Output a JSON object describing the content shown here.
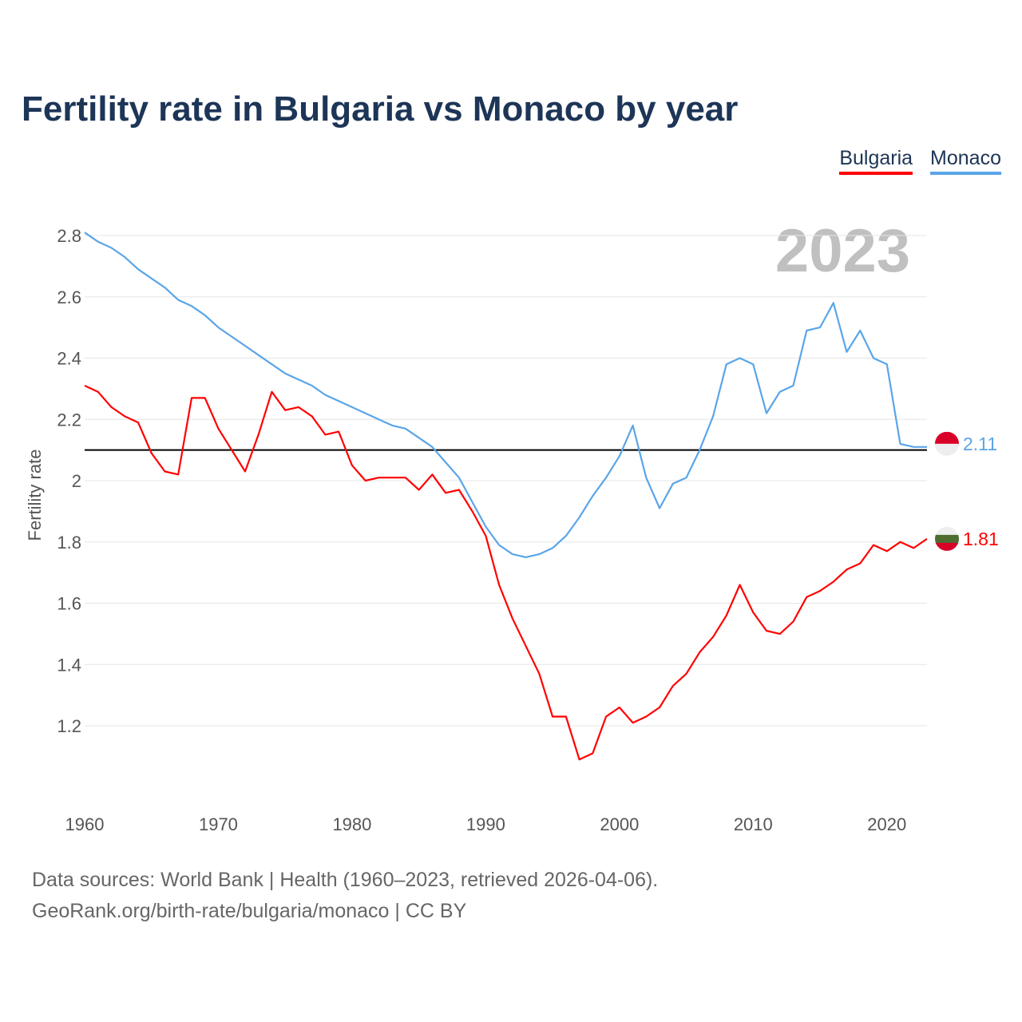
{
  "title": "Fertility rate in Bulgaria vs Monaco by year",
  "legend": [
    {
      "label": "Bulgaria",
      "color": "#ff0000"
    },
    {
      "label": "Monaco",
      "color": "#5aa5e8"
    }
  ],
  "footer": {
    "line1": "Data sources: World Bank | Health (1960–2023, retrieved 2026-04-06).",
    "line2": "GeoRank.org/birth-rate/bulgaria/monaco | CC BY"
  },
  "chart_data": {
    "type": "line",
    "title": "Fertility rate in Bulgaria vs Monaco by year",
    "ylabel": "Fertility rate",
    "xlabel": "",
    "year_label": "2023",
    "xlim": [
      1960,
      2023
    ],
    "ylim": [
      1.0,
      2.8
    ],
    "yticks": [
      1.2,
      1.4,
      1.6,
      1.8,
      2,
      2.2,
      2.4,
      2.6,
      2.8
    ],
    "ytick_labels": [
      "1.2",
      "1.4",
      "1.6",
      "1.8",
      "2",
      "2.2",
      "2.4",
      "2.6",
      "2.8"
    ],
    "xticks": [
      1960,
      1970,
      1980,
      1990,
      2000,
      2010,
      2020
    ],
    "xtick_labels": [
      "1960",
      "1970",
      "1980",
      "1990",
      "2000",
      "2010",
      "2020"
    ],
    "reference_line": 2.1,
    "x_start": 1960,
    "series": [
      {
        "name": "Bulgaria",
        "color": "#ff0000",
        "end_label": "1.81",
        "flag": [
          "#eeeeee",
          "#4e6b30",
          "#d80027"
        ],
        "values": [
          2.31,
          2.29,
          2.24,
          2.21,
          2.19,
          2.09,
          2.03,
          2.02,
          2.27,
          2.27,
          2.17,
          2.1,
          2.03,
          2.15,
          2.29,
          2.23,
          2.24,
          2.21,
          2.15,
          2.16,
          2.05,
          2.0,
          2.01,
          2.01,
          2.01,
          1.97,
          2.02,
          1.96,
          1.97,
          1.9,
          1.82,
          1.66,
          1.55,
          1.46,
          1.37,
          1.23,
          1.23,
          1.09,
          1.11,
          1.23,
          1.26,
          1.21,
          1.23,
          1.26,
          1.33,
          1.37,
          1.44,
          1.49,
          1.56,
          1.66,
          1.57,
          1.51,
          1.5,
          1.54,
          1.62,
          1.64,
          1.67,
          1.71,
          1.73,
          1.79,
          1.77,
          1.8,
          1.78,
          1.81
        ]
      },
      {
        "name": "Monaco",
        "color": "#5aa5e8",
        "end_label": "2.11",
        "flag": [
          "#d80027",
          "#eeeeee"
        ],
        "values": [
          2.81,
          2.78,
          2.76,
          2.73,
          2.69,
          2.66,
          2.63,
          2.59,
          2.57,
          2.54,
          2.5,
          2.47,
          2.44,
          2.41,
          2.38,
          2.35,
          2.33,
          2.31,
          2.28,
          2.26,
          2.24,
          2.22,
          2.2,
          2.18,
          2.17,
          2.14,
          2.11,
          2.06,
          2.01,
          1.93,
          1.85,
          1.79,
          1.76,
          1.75,
          1.76,
          1.78,
          1.82,
          1.88,
          1.95,
          2.01,
          2.08,
          2.18,
          2.01,
          1.91,
          1.99,
          2.01,
          2.1,
          2.21,
          2.38,
          2.4,
          2.38,
          2.22,
          2.29,
          2.31,
          2.49,
          2.5,
          2.58,
          2.42,
          2.49,
          2.4,
          2.38,
          2.12,
          2.11,
          2.11
        ]
      }
    ]
  }
}
